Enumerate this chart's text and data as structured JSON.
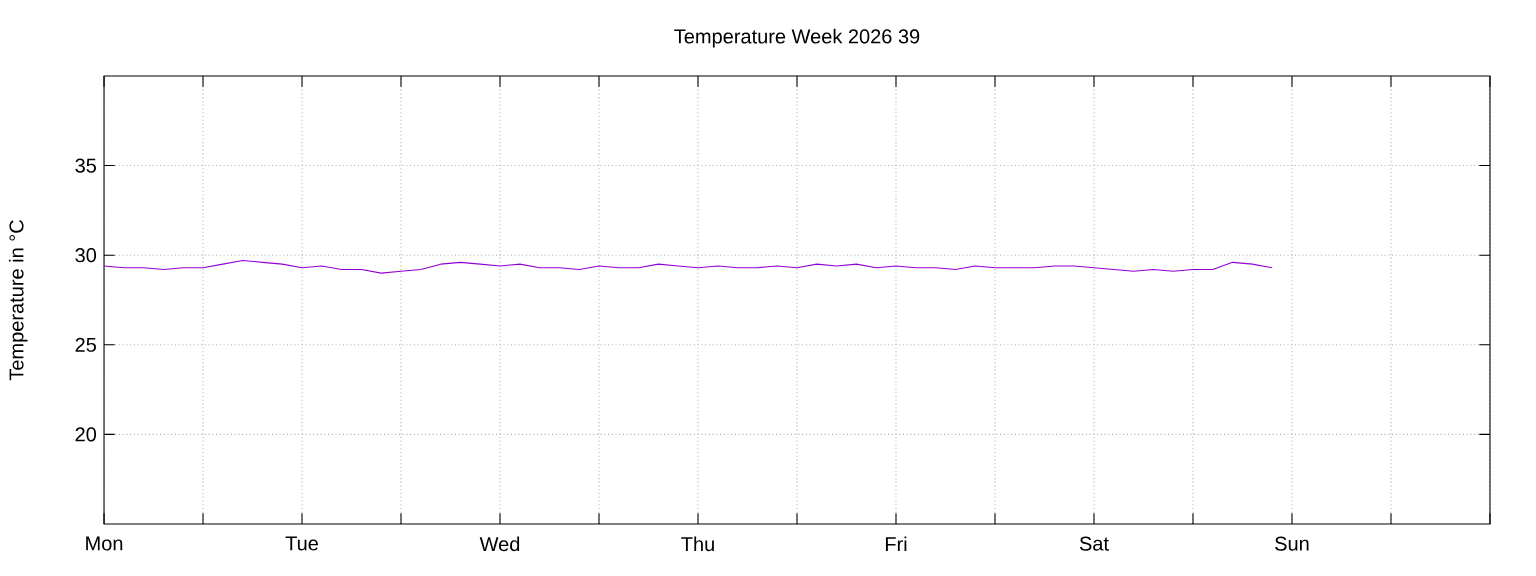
{
  "chart_data": {
    "type": "line",
    "title": "Temperature Week 2026 39",
    "ylabel": "Temperature in °C",
    "categories": [
      "Mon",
      null,
      null,
      null,
      null,
      null,
      null,
      null,
      null,
      null,
      "Tue",
      null,
      null,
      null,
      null,
      null,
      null,
      null,
      null,
      null,
      "Wed",
      null,
      null,
      null,
      null,
      null,
      null,
      null,
      null,
      null,
      "Thu",
      null,
      null,
      null,
      null,
      null,
      null,
      null,
      null,
      null,
      "Fri",
      null,
      null,
      null,
      null,
      null,
      null,
      null,
      null,
      null,
      "Sat",
      null,
      null,
      null,
      null,
      null,
      null,
      null,
      null,
      null,
      "Sun",
      null,
      null,
      null,
      null,
      null,
      null,
      null,
      null,
      null
    ],
    "series": [
      {
        "color": "#9400d3",
        "values": [
          29.4,
          29.3,
          29.3,
          29.2,
          29.3,
          29.3,
          29.5,
          29.7,
          29.6,
          29.5,
          29.3,
          29.4,
          29.2,
          29.2,
          29.0,
          29.1,
          29.2,
          29.5,
          29.6,
          29.5,
          29.4,
          29.5,
          29.3,
          29.3,
          29.2,
          29.4,
          29.3,
          29.3,
          29.5,
          29.4,
          29.3,
          29.4,
          29.3,
          29.3,
          29.4,
          29.3,
          29.5,
          29.4,
          29.5,
          29.3,
          29.4,
          29.3,
          29.3,
          29.2,
          29.4,
          29.3,
          29.3,
          29.3,
          29.4,
          29.4,
          29.3,
          29.2,
          29.1,
          29.2,
          29.1,
          29.2,
          29.2,
          29.6,
          29.5,
          29.3,
          null,
          null,
          null,
          null,
          null,
          null,
          null,
          null,
          null,
          null
        ]
      }
    ],
    "ylim": [
      15,
      40
    ],
    "yticks": [
      20,
      25,
      30,
      35
    ],
    "grid": true,
    "marker": "none",
    "line_style": "solid"
  }
}
